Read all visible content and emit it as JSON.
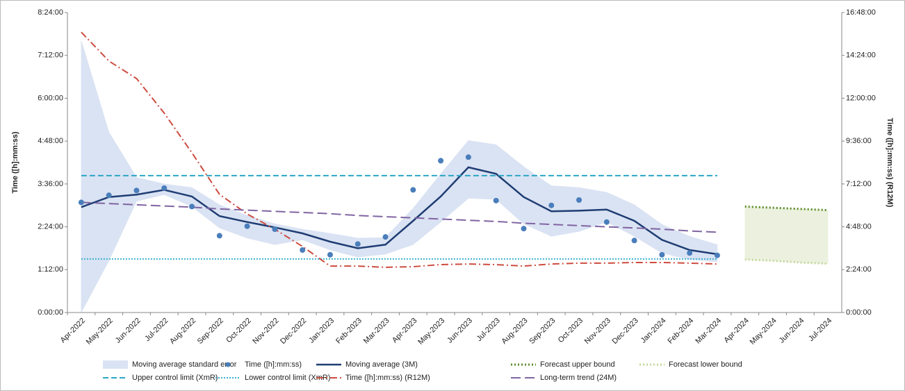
{
  "chart_data": {
    "type": "line",
    "y_label": "Time ([h]:mm:ss)",
    "y2_label": "Time ([h]:mm:ss) (R12M)",
    "categories": [
      "Apr-2022",
      "May-2022",
      "Jun-2022",
      "Jul-2022",
      "Aug-2022",
      "Sep-2022",
      "Oct-2022",
      "Nov-2022",
      "Dec-2022",
      "Jan-2023",
      "Feb-2023",
      "Mar-2023",
      "Apr-2023",
      "May-2023",
      "Jun-2023",
      "Jul-2023",
      "Aug-2023",
      "Sep-2023",
      "Oct-2023",
      "Nov-2023",
      "Dec-2023",
      "Jan-2024",
      "Feb-2024",
      "Mar-2024",
      "Apr-2024",
      "May-2024",
      "Jun-2024",
      "Jul-2024"
    ],
    "ylim": [
      0,
      504
    ],
    "yticks": [
      {
        "value": 0,
        "label": "0:00:00"
      },
      {
        "value": 72,
        "label": "1:12:00"
      },
      {
        "value": 144,
        "label": "2:24:00"
      },
      {
        "value": 216,
        "label": "3:36:00"
      },
      {
        "value": 288,
        "label": "4:48:00"
      },
      {
        "value": 360,
        "label": "6:00:00"
      },
      {
        "value": 432,
        "label": "7:12:00"
      },
      {
        "value": 504,
        "label": "8:24:00"
      }
    ],
    "y2lim": [
      0,
      1008
    ],
    "y2ticks": [
      {
        "value": 0,
        "label": "0:00:00"
      },
      {
        "value": 144,
        "label": "2:24:00"
      },
      {
        "value": 288,
        "label": "4:48:00"
      },
      {
        "value": 432,
        "label": "7:12:00"
      },
      {
        "value": 576,
        "label": "9:36:00"
      },
      {
        "value": 720,
        "label": "12:00:00"
      },
      {
        "value": 864,
        "label": "14:24:00"
      },
      {
        "value": 1008,
        "label": "16:48:00"
      }
    ],
    "series": [
      {
        "name": "Moving average standard error",
        "kind": "band",
        "color": "#dae3f3",
        "upper": [
          457,
          303,
          227,
          216,
          210,
          181,
          163,
          149,
          140,
          133,
          125,
          126,
          175,
          233,
          289,
          282,
          245,
          213,
          210,
          202,
          181,
          148,
          128,
          114,
          null,
          null,
          null,
          null
        ],
        "lower": [
          0,
          87,
          187,
          198,
          178,
          142,
          125,
          114,
          122,
          105,
          93,
          98,
          114,
          152,
          192,
          190,
          149,
          128,
          136,
          152,
          128,
          100,
          89,
          85,
          null,
          null,
          null,
          null
        ]
      },
      {
        "name": "Time ([h]:mm:ss)",
        "kind": "dots",
        "color": "#4a7ebb",
        "values": [
          185,
          197,
          205,
          209,
          178,
          129,
          145,
          140,
          105,
          97,
          115,
          127,
          206,
          255,
          261,
          188,
          141,
          180,
          189,
          152,
          121,
          97,
          100,
          96,
          null,
          null,
          null,
          null
        ]
      },
      {
        "name": "Moving average (3M)",
        "kind": "line",
        "color": "#1f3d73",
        "values": [
          177,
          194,
          198,
          206,
          195,
          162,
          152,
          143,
          133,
          119,
          108,
          114,
          154,
          195,
          244,
          233,
          194,
          170,
          171,
          173,
          154,
          122,
          105,
          98,
          null,
          null,
          null,
          null
        ]
      },
      {
        "name": "Forecast upper bound",
        "kind": "line",
        "dash": "2,3",
        "width": 3,
        "color": "#5b8a2a",
        "values": [
          null,
          null,
          null,
          null,
          null,
          null,
          null,
          null,
          null,
          null,
          null,
          null,
          null,
          null,
          null,
          null,
          null,
          null,
          null,
          null,
          null,
          null,
          null,
          null,
          178,
          176,
          174,
          172
        ]
      },
      {
        "name": "Forecast lower bound",
        "kind": "line",
        "dash": "2,3",
        "width": 3,
        "color": "#c4d79b",
        "fill": "#ebf1de",
        "values": [
          null,
          null,
          null,
          null,
          null,
          null,
          null,
          null,
          null,
          null,
          null,
          null,
          null,
          null,
          null,
          null,
          null,
          null,
          null,
          null,
          null,
          null,
          null,
          null,
          89,
          87,
          84,
          82
        ]
      },
      {
        "name": "Upper control limit (XmR)",
        "kind": "line",
        "dash": "8,4",
        "width": 2,
        "color": "#2aa6c6",
        "values": [
          230,
          230,
          230,
          230,
          230,
          230,
          230,
          230,
          230,
          230,
          230,
          230,
          230,
          230,
          230,
          230,
          230,
          230,
          230,
          230,
          230,
          230,
          230,
          230,
          null,
          null,
          null,
          null
        ]
      },
      {
        "name": "Lower control limit (XmR)",
        "kind": "line",
        "dash": "2,2",
        "width": 2,
        "color": "#3ab0d0",
        "values": [
          90,
          90,
          90,
          90,
          90,
          90,
          90,
          90,
          90,
          90,
          90,
          90,
          90,
          90,
          90,
          90,
          90,
          90,
          90,
          90,
          90,
          90,
          90,
          90,
          null,
          null,
          null,
          null
        ]
      },
      {
        "name": "Time ([h]:mm:ss) (R12M)",
        "kind": "line",
        "axis": "y2",
        "dash": "10,4,2,4",
        "width": 2,
        "color": "#cd4b3f",
        "values": [
          942,
          845,
          786,
          670,
          537,
          397,
          331,
          280,
          222,
          156,
          156,
          152,
          154,
          161,
          163,
          161,
          156,
          163,
          166,
          166,
          168,
          168,
          166,
          163,
          null,
          null,
          null,
          null
        ]
      },
      {
        "name": "Long-term trend (24M)",
        "kind": "line",
        "dash": "14,6",
        "width": 2,
        "color": "#8064a2",
        "values": [
          185,
          183,
          181,
          179,
          177,
          174,
          172,
          170,
          168,
          166,
          163,
          161,
          159,
          157,
          155,
          153,
          150,
          148,
          146,
          144,
          142,
          140,
          137,
          135,
          null,
          null,
          null,
          null
        ]
      }
    ]
  }
}
